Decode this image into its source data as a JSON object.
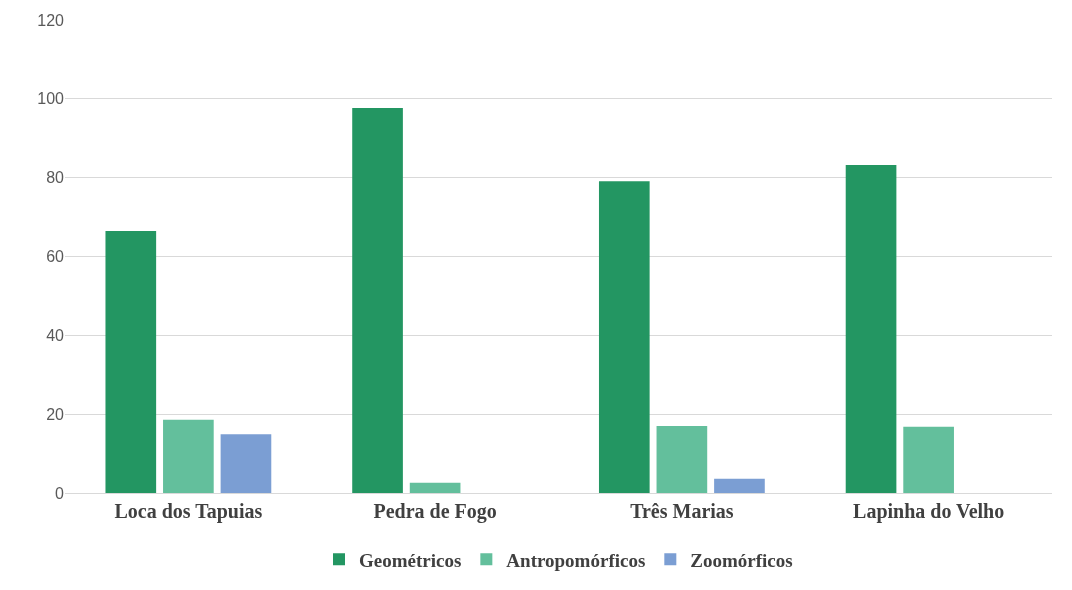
{
  "chart_data": {
    "type": "bar",
    "categories": [
      "Loca dos Tapuias",
      "Pedra de Fogo",
      "Três Marias",
      "Lapinha do Velho"
    ],
    "series": [
      {
        "name": "Geométricos",
        "color": "#239662",
        "values": [
          66.5,
          97.7,
          79.1,
          83.2
        ]
      },
      {
        "name": "Antropomórficos",
        "color": "#63bf9c",
        "values": [
          18.6,
          2.6,
          17,
          16.8
        ]
      },
      {
        "name": "Zoomórficos",
        "color": "#7b9ed3",
        "values": [
          14.9,
          0,
          3.6,
          0
        ]
      }
    ],
    "ylim": [
      0,
      120
    ],
    "yticks": [
      0,
      20,
      40,
      60,
      80,
      100,
      120
    ],
    "grid": "y",
    "legend": "bottom"
  }
}
